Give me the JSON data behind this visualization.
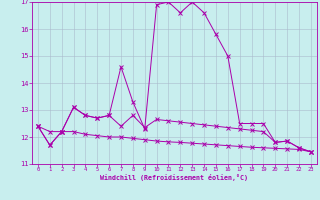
{
  "xlabel": "Windchill (Refroidissement éolien,°C)",
  "background_color": "#c8eeee",
  "line_color": "#aa00aa",
  "grid_color": "#aabbcc",
  "xlim": [
    -0.5,
    23.5
  ],
  "ylim": [
    11,
    17
  ],
  "yticks": [
    11,
    12,
    13,
    14,
    15,
    16,
    17
  ],
  "xticks": [
    0,
    1,
    2,
    3,
    4,
    5,
    6,
    7,
    8,
    9,
    10,
    11,
    12,
    13,
    14,
    15,
    16,
    17,
    18,
    19,
    20,
    21,
    22,
    23
  ],
  "series": [
    {
      "x": [
        0,
        1,
        2,
        3,
        4,
        5,
        6,
        7,
        8,
        9,
        10,
        11,
        12,
        13,
        14,
        15,
        16,
        17,
        18,
        19,
        20,
        21,
        22,
        23
      ],
      "y": [
        12.4,
        11.7,
        12.2,
        13.1,
        12.8,
        12.7,
        12.8,
        14.6,
        13.3,
        12.3,
        16.9,
        17.0,
        16.6,
        17.0,
        16.6,
        15.8,
        15.0,
        12.5,
        12.5,
        12.5,
        11.8,
        11.85,
        11.6,
        11.45
      ]
    },
    {
      "x": [
        0,
        1,
        2,
        3,
        4,
        5,
        6,
        7,
        8,
        9,
        10,
        11,
        12,
        13,
        14,
        15,
        16,
        17,
        18,
        19,
        20,
        21,
        22,
        23
      ],
      "y": [
        12.4,
        11.7,
        12.2,
        13.1,
        12.8,
        12.7,
        12.8,
        12.4,
        12.8,
        12.35,
        12.65,
        12.6,
        12.55,
        12.5,
        12.45,
        12.4,
        12.35,
        12.3,
        12.25,
        12.2,
        11.8,
        11.85,
        11.6,
        11.45
      ]
    },
    {
      "x": [
        0,
        1,
        2,
        3,
        4,
        5,
        6,
        7,
        8,
        9,
        10,
        11,
        12,
        13,
        14,
        15,
        16,
        17,
        18,
        19,
        20,
        21,
        22,
        23
      ],
      "y": [
        12.4,
        12.2,
        12.2,
        12.2,
        12.1,
        12.05,
        12.0,
        12.0,
        11.95,
        11.9,
        11.85,
        11.82,
        11.8,
        11.77,
        11.74,
        11.71,
        11.68,
        11.65,
        11.62,
        11.6,
        11.58,
        11.56,
        11.54,
        11.45
      ]
    }
  ]
}
